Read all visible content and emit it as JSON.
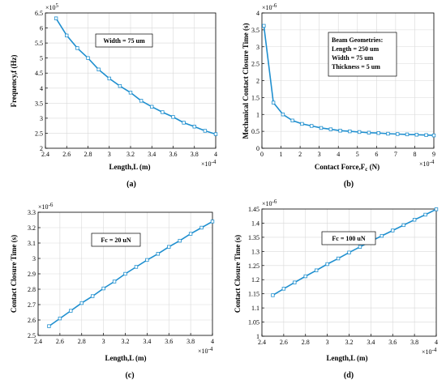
{
  "chart_data": [
    {
      "id": "a",
      "type": "line",
      "caption": "(a)",
      "xlabel": "Length,L (m)",
      "ylabel": "Frequency,f (Hz)",
      "x_multiplier": "×10",
      "x_exponent": "-4",
      "y_multiplier": "×10",
      "y_exponent": "5",
      "xlim": [
        2.4,
        4.0
      ],
      "ylim": [
        2.0,
        6.5
      ],
      "xticks": [
        "2.4",
        "2.6",
        "2.8",
        "3",
        "3.2",
        "3.4",
        "3.6",
        "3.8",
        "4"
      ],
      "yticks": [
        "2",
        "2.5",
        "3",
        "3.5",
        "4",
        "4.5",
        "5",
        "5.5",
        "6",
        "6.5"
      ],
      "annotation": [
        "Width = 75 um"
      ],
      "grid": true,
      "x": [
        2.5,
        2.6,
        2.7,
        2.8,
        2.9,
        3.0,
        3.1,
        3.2,
        3.3,
        3.4,
        3.5,
        3.6,
        3.7,
        3.8,
        3.9,
        4.0
      ],
      "y": [
        6.32,
        5.75,
        5.33,
        5.0,
        4.62,
        4.32,
        4.07,
        3.85,
        3.58,
        3.38,
        3.2,
        3.04,
        2.85,
        2.72,
        2.58,
        2.47
      ]
    },
    {
      "id": "b",
      "type": "line",
      "caption": "(b)",
      "xlabel": "Contact Force,F",
      "xlabel_sub": "c",
      "xlabel_unit": " (N)",
      "ylabel": "Mechanical Contact Closure Time (s)",
      "x_multiplier": "×10",
      "x_exponent": "-4",
      "y_multiplier": "×10",
      "y_exponent": "-6",
      "xlim": [
        0,
        9
      ],
      "ylim": [
        0,
        4.0
      ],
      "xticks": [
        "0",
        "1",
        "2",
        "3",
        "4",
        "5",
        "6",
        "7",
        "8",
        "9"
      ],
      "yticks": [
        "0",
        "0.5",
        "1",
        "1.5",
        "2",
        "2.5",
        "3",
        "3.5",
        "4"
      ],
      "annotation": [
        "Beam Geometries:",
        "Length = 250  um",
        "Width  = 75     um",
        "Thickness = 5 um"
      ],
      "grid": true,
      "x": [
        0.1,
        0.6,
        1.1,
        1.6,
        2.1,
        2.6,
        3.1,
        3.6,
        4.1,
        4.6,
        5.1,
        5.6,
        6.1,
        6.6,
        7.1,
        7.6,
        8.1,
        8.6,
        9.0
      ],
      "y": [
        3.62,
        1.35,
        1.0,
        0.82,
        0.72,
        0.66,
        0.6,
        0.56,
        0.52,
        0.5,
        0.48,
        0.46,
        0.45,
        0.43,
        0.42,
        0.41,
        0.4,
        0.39,
        0.38
      ]
    },
    {
      "id": "c",
      "type": "line",
      "caption": "(c)",
      "xlabel": "Length,L (m)",
      "ylabel": "Contact Closure Time (s)",
      "x_multiplier": "×10",
      "x_exponent": "-4",
      "y_multiplier": "×10",
      "y_exponent": "-6",
      "xlim": [
        2.4,
        4.0
      ],
      "ylim": [
        2.5,
        3.3
      ],
      "xticks": [
        "2.4",
        "2.6",
        "2.8",
        "3",
        "3.2",
        "3.4",
        "3.6",
        "3.8",
        "4"
      ],
      "yticks": [
        "2.5",
        "2.6",
        "2.7",
        "2.8",
        "2.9",
        "3",
        "3.1",
        "3.2",
        "3.3"
      ],
      "annotation": [
        "Fc = 20 uN"
      ],
      "grid": true,
      "x": [
        2.5,
        2.6,
        2.7,
        2.8,
        2.9,
        3.0,
        3.1,
        3.2,
        3.3,
        3.4,
        3.5,
        3.6,
        3.7,
        3.8,
        3.9,
        4.0
      ],
      "y": [
        2.56,
        2.61,
        2.66,
        2.71,
        2.755,
        2.805,
        2.85,
        2.9,
        2.945,
        2.99,
        3.03,
        3.075,
        3.115,
        3.16,
        3.2,
        3.24
      ]
    },
    {
      "id": "d",
      "type": "line",
      "caption": "(d)",
      "xlabel": "Length,L (m)",
      "ylabel": "Contact Closure Time (s)",
      "x_multiplier": "×10",
      "x_exponent": "-4",
      "y_multiplier": "×10",
      "y_exponent": "-6",
      "xlim": [
        2.4,
        4.0
      ],
      "ylim": [
        1.0,
        1.45
      ],
      "xticks": [
        "2.4",
        "2.6",
        "2.8",
        "3",
        "3.2",
        "3.4",
        "3.6",
        "3.8",
        "4"
      ],
      "yticks": [
        "1",
        "1.05",
        "1.1",
        "1.15",
        "1.2",
        "1.25",
        "1.3",
        "1.35",
        "1.4",
        "1.45"
      ],
      "annotation": [
        "Fc = 100 uN"
      ],
      "grid": true,
      "x": [
        2.5,
        2.6,
        2.7,
        2.8,
        2.9,
        3.0,
        3.1,
        3.2,
        3.3,
        3.4,
        3.5,
        3.6,
        3.7,
        3.8,
        3.9,
        4.0
      ],
      "y": [
        1.145,
        1.168,
        1.19,
        1.212,
        1.233,
        1.255,
        1.275,
        1.296,
        1.316,
        1.336,
        1.355,
        1.374,
        1.393,
        1.412,
        1.43,
        1.449
      ]
    }
  ],
  "style": {
    "line_color": "#1f8fcf",
    "marker_fill": "#ffffff",
    "grid_color": "#d9d9d9",
    "axis_color": "#000000"
  }
}
